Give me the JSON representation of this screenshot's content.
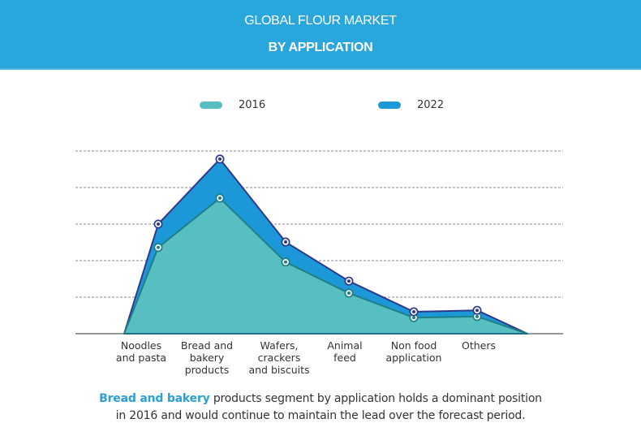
{
  "header": {
    "title_line1": "GLOBAL FLOUR MARKET",
    "title_line2": "BY APPLICATION"
  },
  "colors": {
    "header_bg": "#29a6dc",
    "series_2016": "#57bfc1",
    "series_2016_line": "#1f7f86",
    "series_2022": "#1c97d8",
    "series_2022_line": "#2d3a8c",
    "highlight": "#2b9fd6"
  },
  "chart_data": {
    "type": "area",
    "title": "GLOBAL FLOUR MARKET BY APPLICATION",
    "xlabel": "",
    "ylabel": "",
    "ylim": [
      0,
      5
    ],
    "grid": true,
    "legend_position": "top",
    "categories": [
      "Noodles and pasta",
      "Bread and bakery products",
      "Wafers, crackers and biscuits",
      "Animal feed",
      "Non food application",
      "Others"
    ],
    "category_labels": [
      [
        "Noodles",
        "and pasta"
      ],
      [
        "Bread and",
        "bakery",
        "products"
      ],
      [
        "Wafers,",
        "crackers",
        "and biscuits"
      ],
      [
        "Animal",
        "feed"
      ],
      [
        "Non food",
        "application"
      ],
      [
        "Others"
      ]
    ],
    "series": [
      {
        "name": "2016",
        "values": [
          2.36,
          3.71,
          1.96,
          1.11,
          0.44,
          0.47
        ]
      },
      {
        "name": "2022",
        "values": [
          3.0,
          4.78,
          2.51,
          1.44,
          0.6,
          0.64
        ]
      }
    ]
  },
  "legend": [
    {
      "label": "2016"
    },
    {
      "label": "2022"
    }
  ],
  "caption": {
    "highlight": "Bread and bakery",
    "line1_rest": " products segment by application holds a dominant position",
    "line2": "in 2016 and would continue to maintain the lead over the forecast period."
  }
}
